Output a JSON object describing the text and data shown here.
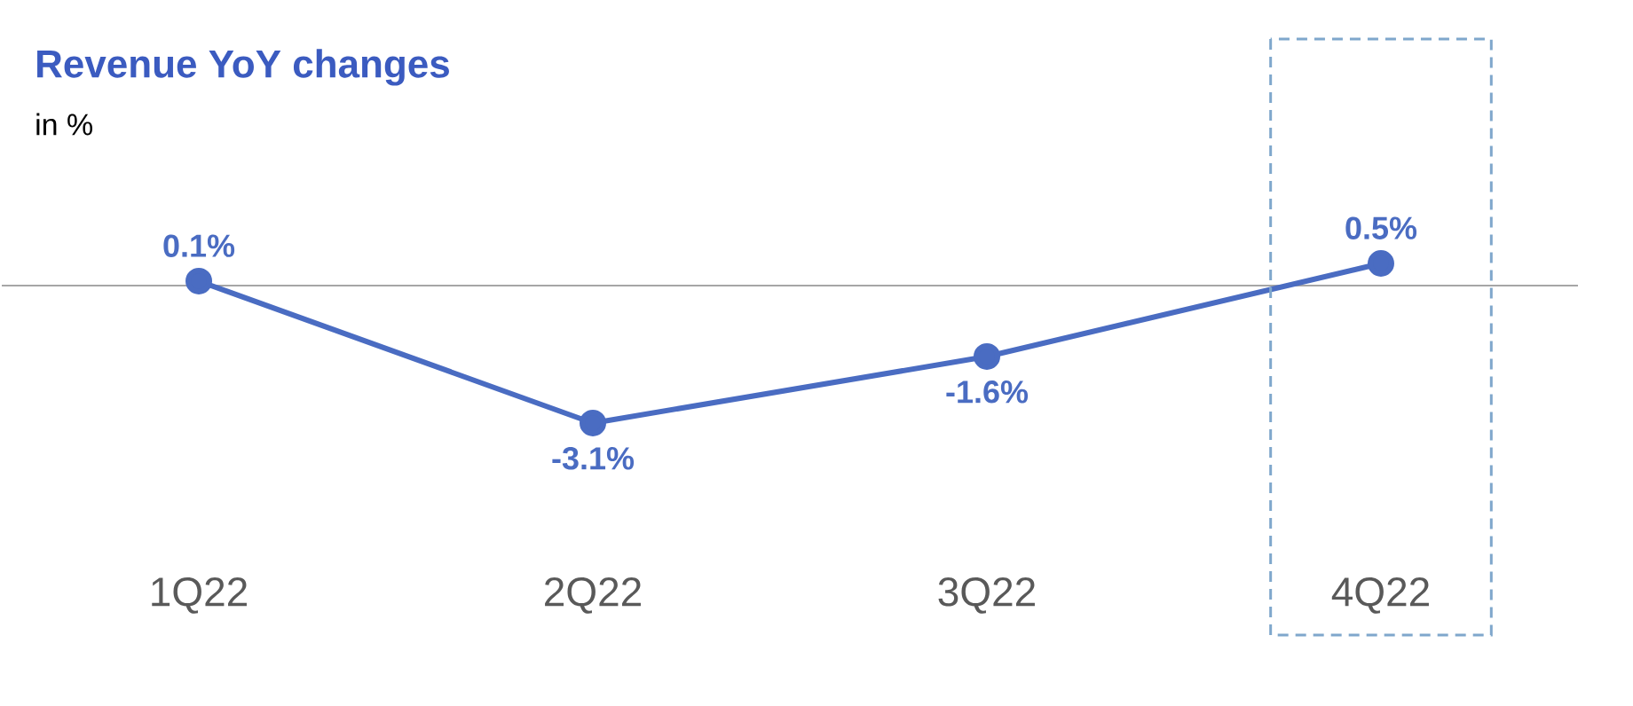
{
  "chart_data": {
    "type": "line",
    "title": "Revenue YoY changes",
    "subtitle": "in %",
    "categories": [
      "1Q22",
      "2Q22",
      "3Q22",
      "4Q22"
    ],
    "values": [
      0.1,
      -3.1,
      -1.6,
      0.5
    ],
    "value_labels": [
      "0.1%",
      "-3.1%",
      "-1.6%",
      "0.5%"
    ],
    "color": "#4a6cc2",
    "marker": "circle",
    "line_style": "solid",
    "ref_lines": [
      {
        "axis": "y",
        "value": 0,
        "color": "#a6a6a6"
      }
    ]
  }
}
